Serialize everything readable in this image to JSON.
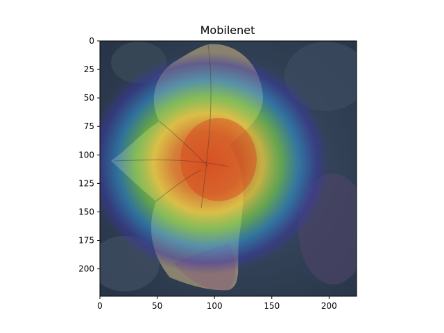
{
  "chart_data": {
    "type": "heatmap",
    "title": "Mobilenet",
    "xlabel": "",
    "ylabel": "",
    "xlim": [
      0,
      224
    ],
    "ylim": [
      224,
      0
    ],
    "xticks": [
      0,
      50,
      100,
      150,
      200
    ],
    "yticks": [
      0,
      25,
      50,
      75,
      100,
      125,
      150,
      175,
      200
    ],
    "grid": false,
    "image_description_colors": {
      "background_dark": "#2f3f55",
      "cold": "#3a38a8",
      "cool": "#2e9ad8",
      "mid": "#7fe04a",
      "warm": "#f5d23a",
      "hot": "#e8531e",
      "leaf": "#c9c080",
      "leaf_dark": "#6b4a3a"
    },
    "activation_center": [
      90,
      110
    ],
    "activation_peak": 1.0
  }
}
